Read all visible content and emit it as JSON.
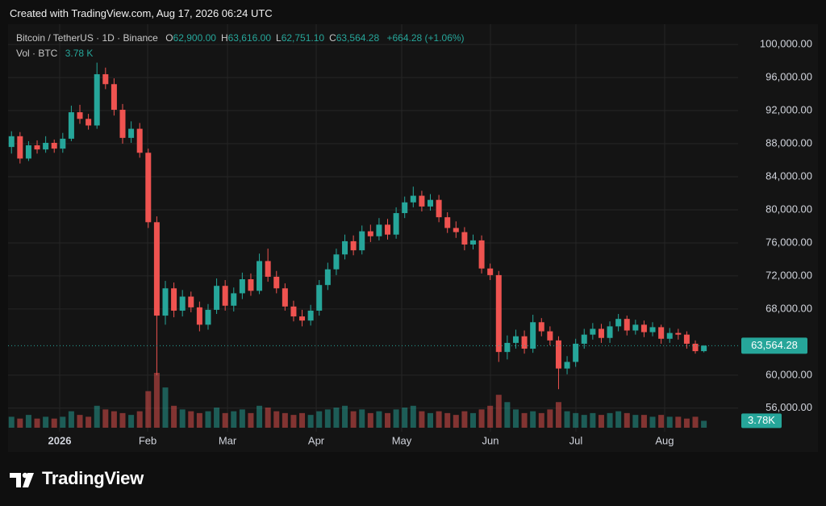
{
  "header": {
    "created": "Created with TradingView.com, Aug 17, 2026 06:24 UTC"
  },
  "branding": {
    "logo_text": "TradingView"
  },
  "chart_data": {
    "type": "candlestick",
    "legend": {
      "symbol": "Bitcoin / TetherUS · 1D · Binance",
      "items": [
        {
          "key": "O",
          "text": "62,900.00"
        },
        {
          "key": "H",
          "text": "63,616.00"
        },
        {
          "key": "L",
          "text": "62,751.10"
        },
        {
          "key": "C",
          "text": "63,564.28"
        }
      ],
      "change": "+664.28 (+1.06%)"
    },
    "up_color": "#26a69a",
    "down_color": "#ef5350",
    "grid": true,
    "xlim": [
      -0.4,
      85
    ],
    "xticks": [
      {
        "value": 5.64,
        "label": "2026"
      },
      {
        "value": 15.93,
        "label": "Feb"
      },
      {
        "value": 25.27,
        "label": "Mar"
      },
      {
        "value": 35.65,
        "label": "Apr"
      },
      {
        "value": 45.65,
        "label": "May"
      },
      {
        "value": 56.03,
        "label": "Jun"
      },
      {
        "value": 66.03,
        "label": "Jul"
      },
      {
        "value": 76.41,
        "label": "Aug"
      }
    ],
    "ylim": [
      53150,
      102450
    ],
    "yticks": [
      {
        "value": 56000,
        "label": "56,000.00"
      },
      {
        "value": 60000,
        "label": "60,000.00"
      },
      {
        "value": 68000,
        "label": "68,000.00"
      },
      {
        "value": 72000,
        "label": "72,000.00"
      },
      {
        "value": 76000,
        "label": "76,000.00"
      },
      {
        "value": 80000,
        "label": "80,000.00"
      },
      {
        "value": 84000,
        "label": "84,000.00"
      },
      {
        "value": 88000,
        "label": "88,000.00"
      },
      {
        "value": 92000,
        "label": "92,000.00"
      },
      {
        "value": 96000,
        "label": "96,000.00"
      },
      {
        "value": 100000,
        "label": "100,000.00"
      }
    ],
    "last_price": {
      "value": 63564.28,
      "label": "63,564.28"
    },
    "open": [
      87600,
      88900,
      86200,
      87800,
      87300,
      88100,
      87400,
      88600,
      91800,
      91000,
      90200,
      96400,
      95200,
      92100,
      88700,
      89800,
      86900,
      78500,
      67200,
      70500,
      67800,
      69500,
      68200,
      66100,
      67900,
      70800,
      68400,
      69900,
      71600,
      70200,
      73800,
      71900,
      70500,
      68300,
      67100,
      66600,
      67800,
      70900,
      72800,
      74600,
      76200,
      75100,
      77400,
      76800,
      78200,
      77000,
      79600,
      80900,
      81700,
      80400,
      81200,
      79100,
      77800,
      77300,
      75800,
      76300,
      72900,
      72100,
      62800,
      63900,
      64700,
      63200,
      66400,
      65300,
      64200,
      60800,
      61600,
      63800,
      64900,
      65600,
      64500,
      65900,
      66800,
      65400,
      66100,
      65200,
      65800,
      64400,
      65100,
      64900,
      63800,
      62900
    ],
    "high": [
      89500,
      89400,
      88300,
      88400,
      88900,
      88500,
      89300,
      92600,
      92700,
      91600,
      97800,
      97200,
      95900,
      92800,
      90700,
      90500,
      87400,
      79200,
      71400,
      71200,
      70300,
      70100,
      68900,
      68600,
      71700,
      71500,
      70600,
      72400,
      72300,
      74700,
      75300,
      72600,
      71100,
      69000,
      67900,
      68500,
      71500,
      73600,
      75300,
      77000,
      76900,
      78100,
      78200,
      79000,
      78900,
      80300,
      81600,
      82800,
      82300,
      81900,
      81800,
      79700,
      78600,
      77900,
      77000,
      76900,
      73500,
      72600,
      64800,
      65500,
      65400,
      67300,
      66900,
      65900,
      64700,
      62300,
      64400,
      65600,
      66300,
      66200,
      66500,
      67400,
      67200,
      66700,
      66600,
      66400,
      66100,
      65700,
      65600,
      65300,
      64200,
      63616
    ],
    "low": [
      86800,
      85600,
      85900,
      86800,
      86900,
      86900,
      86900,
      88300,
      90400,
      89700,
      89800,
      94600,
      91400,
      88000,
      88100,
      86300,
      77800,
      60000,
      66100,
      67000,
      67100,
      67600,
      65300,
      65500,
      67400,
      67800,
      67700,
      69200,
      69600,
      69800,
      71300,
      69900,
      67800,
      66500,
      65900,
      66000,
      67200,
      70300,
      72100,
      74000,
      74500,
      74600,
      76100,
      76300,
      76400,
      76500,
      79000,
      80300,
      79800,
      79900,
      78500,
      77200,
      76600,
      75100,
      75200,
      72300,
      71500,
      61600,
      61900,
      63200,
      62600,
      62700,
      64700,
      63600,
      58300,
      60100,
      61000,
      63200,
      64300,
      63900,
      63900,
      65300,
      64800,
      64900,
      64600,
      64700,
      63800,
      63900,
      64300,
      63200,
      62600,
      62751.1
    ],
    "close": [
      88900,
      86200,
      87800,
      87300,
      88100,
      87400,
      88600,
      91800,
      91000,
      90200,
      96400,
      95200,
      92100,
      88700,
      89800,
      86900,
      78500,
      67200,
      70500,
      67800,
      69500,
      68200,
      66100,
      67900,
      70800,
      68400,
      69900,
      71600,
      70200,
      73800,
      71900,
      70500,
      68300,
      67100,
      66600,
      67800,
      70900,
      72800,
      74600,
      76200,
      75100,
      77400,
      76800,
      78200,
      77000,
      79600,
      80900,
      81700,
      80400,
      81200,
      79100,
      77800,
      77300,
      75800,
      76300,
      72900,
      72100,
      62800,
      63900,
      64700,
      63200,
      66400,
      65300,
      64200,
      60800,
      61600,
      63800,
      64900,
      65600,
      64500,
      65900,
      66800,
      65400,
      66100,
      65200,
      65800,
      64400,
      65100,
      64900,
      63800,
      62900,
      63564.28
    ],
    "volume": {
      "name": "Vol · BTC",
      "legend_value": "3.78 K",
      "last": {
        "value": 3.78,
        "label": "3.78K"
      },
      "values": [
        6,
        5,
        7,
        5,
        6,
        5,
        6,
        9,
        7,
        6,
        12,
        10,
        9,
        8,
        7,
        9,
        20,
        30,
        22,
        12,
        10,
        9,
        8,
        9,
        11,
        8,
        9,
        10,
        8,
        12,
        11,
        9,
        8,
        7,
        8,
        7,
        9,
        10,
        11,
        12,
        9,
        10,
        8,
        9,
        8,
        10,
        11,
        12,
        9,
        8,
        9,
        8,
        7,
        9,
        8,
        10,
        12,
        18,
        14,
        10,
        8,
        9,
        8,
        10,
        14,
        9,
        8,
        7,
        8,
        7,
        8,
        9,
        8,
        7,
        7,
        6,
        7,
        6,
        6,
        5,
        6,
        3.78
      ]
    }
  }
}
